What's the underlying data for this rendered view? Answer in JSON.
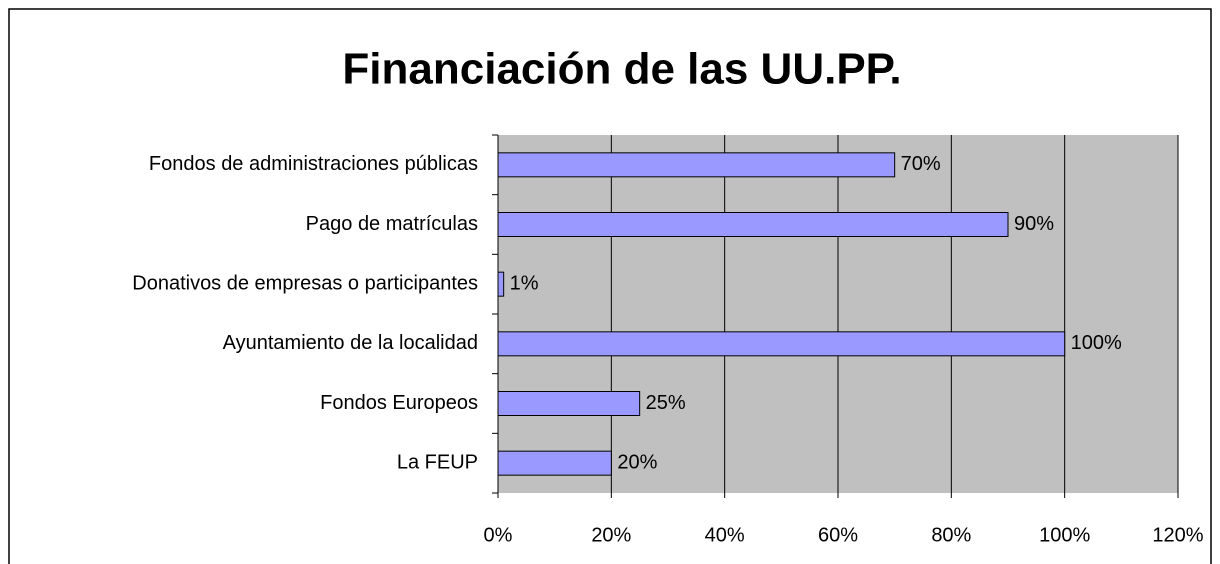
{
  "chart_data": {
    "type": "hbar",
    "title": "Financiación de las UU.PP.",
    "categories": [
      "Fondos de administraciones públicas",
      "Pago de matrículas",
      "Donativos de empresas o participantes",
      "Ayuntamiento de la localidad",
      "Fondos Europeos",
      "La FEUP"
    ],
    "values": [
      70,
      90,
      1,
      100,
      25,
      20
    ],
    "value_labels": [
      "70%",
      "90%",
      "1%",
      "100%",
      "25%",
      "20%"
    ],
    "color": "#9999ff",
    "plot_background": "#c0c0c0",
    "xlim": [
      0,
      120
    ],
    "xticks": [
      {
        "value": 0,
        "label": "0%"
      },
      {
        "value": 20,
        "label": "20%"
      },
      {
        "value": 40,
        "label": "40%"
      },
      {
        "value": 60,
        "label": "60%"
      },
      {
        "value": 80,
        "label": "80%"
      },
      {
        "value": 100,
        "label": "100%"
      },
      {
        "value": 120,
        "label": "120%"
      }
    ],
    "grid": true
  }
}
